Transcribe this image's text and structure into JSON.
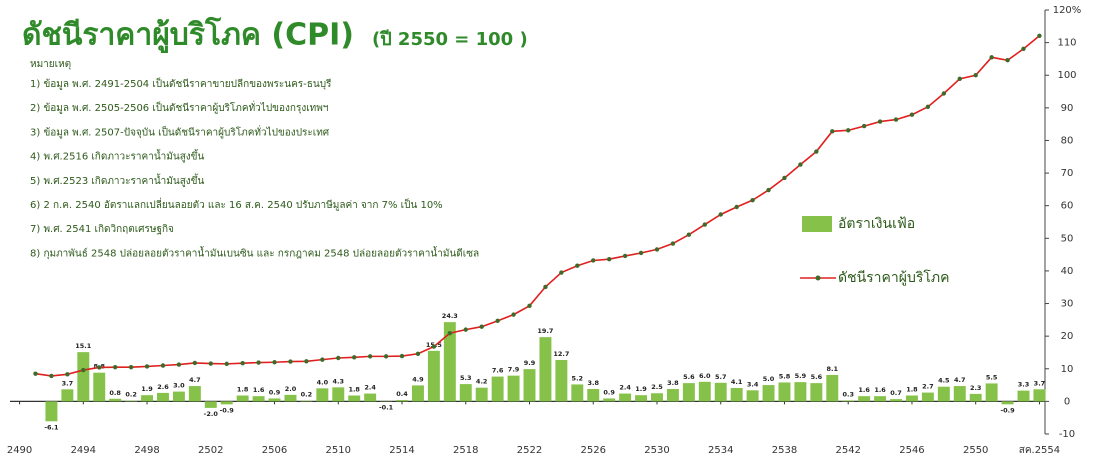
{
  "chart_data": {
    "type": "combo",
    "title": "ดัชนีราคาผู้บริโภค (CPI)",
    "subtitle": "(ปี 2550 = 100 )",
    "notes_title": "หมายเหตุ",
    "notes": [
      "1) ข้อมูล พ.ศ. 2491-2504 เป็นดัชนีราคาขายปลีกของพระนคร-ธนบุรี",
      "2) ข้อมูล พ.ศ. 2505-2506 เป็นดัชนีราคาผู้บริโภคทั่วไปของกรุงเทพฯ",
      "3) ข้อมูล พ.ศ. 2507-ปัจจุบัน เป็นดัชนีราคาผู้บริโภคทั่วไปของประเทศ",
      "4) พ.ศ.2516   เกิดภาวะราคาน้ำมันสูงขึ้น",
      "5) พ.ศ.2523   เกิดภาวะราคาน้ำมันสูงขึ้น",
      "6) 2 ก.ค. 2540 อัตราแลกเปลี่ยนลอยตัว และ 16 ส.ค. 2540 ปรับภาษีมูลค่า จาก 7% เป็น 10%",
      "7) พ.ศ. 2541 เกิดวิกฤตเศรษฐกิจ",
      "8) กุมภาพันธ์ 2548 ปล่อยลอยตัวราคาน้ำมันเบนซิน และ กรกฎาคม 2548 ปล่อยลอยตัวราคาน้ำมันดีเซล"
    ],
    "x": [
      2491,
      2492,
      2493,
      2494,
      2495,
      2496,
      2497,
      2498,
      2499,
      2500,
      2501,
      2502,
      2503,
      2504,
      2505,
      2506,
      2507,
      2508,
      2509,
      2510,
      2511,
      2512,
      2513,
      2514,
      2515,
      2516,
      2517,
      2518,
      2519,
      2520,
      2521,
      2522,
      2523,
      2524,
      2525,
      2526,
      2527,
      2528,
      2529,
      2530,
      2531,
      2532,
      2533,
      2534,
      2535,
      2536,
      2537,
      2538,
      2539,
      2540,
      2541,
      2542,
      2543,
      2544,
      2545,
      2546,
      2547,
      2548,
      2549,
      2550,
      2551,
      2552,
      2553,
      2554
    ],
    "series": [
      {
        "name": "อัตราเงินเฟ้อ",
        "type": "bar",
        "color": "#86c24a",
        "values": [
          null,
          -6.1,
          3.7,
          15.1,
          8.8,
          0.8,
          0.2,
          1.9,
          2.6,
          3.0,
          4.7,
          -2.0,
          -0.9,
          1.8,
          1.6,
          0.9,
          2.0,
          0.2,
          4.0,
          4.3,
          1.8,
          2.4,
          -0.1,
          0.4,
          4.9,
          15.5,
          24.3,
          5.3,
          4.2,
          7.6,
          7.9,
          9.9,
          19.7,
          12.7,
          5.2,
          3.8,
          0.9,
          2.4,
          1.9,
          2.5,
          3.8,
          5.6,
          6.0,
          5.7,
          4.1,
          3.4,
          5.0,
          5.8,
          5.9,
          5.6,
          8.1,
          0.3,
          1.6,
          1.6,
          0.7,
          1.8,
          2.7,
          4.5,
          4.7,
          2.3,
          5.5,
          -0.9,
          3.3,
          3.7
        ],
        "value_labels": [
          null,
          "-6.1",
          "3.7",
          "15.1",
          "8.8",
          "0.8",
          "0.2",
          "1.9",
          "2.6",
          "3.0",
          "4.7",
          "-2.0",
          "-0.9",
          "1.8",
          "1.6",
          "0.9",
          "2.0",
          "0.2",
          "4.0",
          "4.3",
          "1.8",
          "2.4",
          "-0.1",
          "0.4",
          "4.9",
          "15.5",
          "24.3",
          "5.3",
          "4.2",
          "7.6",
          "7.9",
          "9.9",
          "19.7",
          "12.7",
          "5.2",
          "3.8",
          "0.9",
          "2.4",
          "1.9",
          "2.5",
          "3.8",
          "5.6",
          "6.0",
          "5.7",
          "4.1",
          "3.4",
          "5.0",
          "5.8",
          "5.9",
          "5.6",
          "8.1",
          "0.3",
          "1.6",
          "1.6",
          "0.7",
          "1.8",
          "2.7",
          "4.5",
          "4.7",
          "2.3",
          "5.5",
          "-0.9",
          "3.3",
          "3.7"
        ]
      },
      {
        "name": "ดัชนีราคาผู้บริโภค",
        "type": "line",
        "color": "#e0201e",
        "marker_color": "#3f6b2a",
        "values": [
          8.5,
          7.8,
          8.3,
          9.6,
          10.4,
          10.5,
          10.5,
          10.7,
          11.0,
          11.3,
          11.8,
          11.6,
          11.5,
          11.7,
          11.9,
          12.0,
          12.2,
          12.3,
          12.8,
          13.3,
          13.5,
          13.8,
          13.8,
          13.9,
          14.6,
          16.8,
          20.9,
          22.0,
          22.9,
          24.7,
          26.6,
          29.3,
          35.1,
          39.5,
          41.6,
          43.2,
          43.6,
          44.6,
          45.5,
          46.6,
          48.4,
          51.1,
          54.2,
          57.3,
          59.6,
          61.7,
          64.8,
          68.5,
          72.6,
          76.6,
          82.8,
          83.1,
          84.4,
          85.8,
          86.4,
          87.9,
          90.3,
          94.4,
          98.9,
          100,
          105.5,
          104.6,
          108.1,
          112.1
        ]
      }
    ],
    "xlim": [
      2489.4,
      2554.6
    ],
    "xticks": [
      2490,
      2494,
      2498,
      2502,
      2506,
      2510,
      2514,
      2518,
      2522,
      2526,
      2530,
      2534,
      2538,
      2542,
      2546,
      2550,
      {
        "value": 2554,
        "label": "สค.2554"
      }
    ],
    "ylim": [
      -10,
      120
    ],
    "yticks": [
      -10,
      0,
      10,
      20,
      30,
      40,
      50,
      60,
      70,
      80,
      90,
      100,
      110,
      {
        "value": 120,
        "label": "120%"
      }
    ],
    "y_axis_side": "right",
    "grid": false
  }
}
